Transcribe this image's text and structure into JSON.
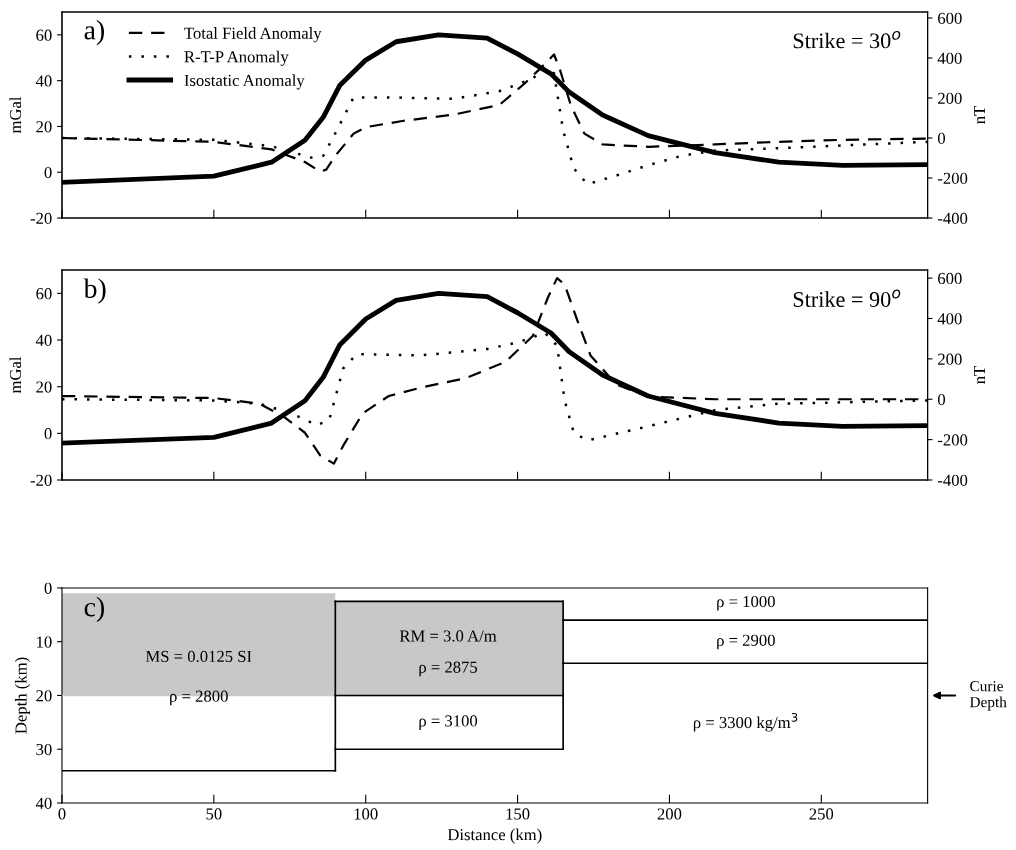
{
  "chart_data": [
    {
      "type": "line",
      "ylabel": "mGal",
      "y2label": "nT",
      "annotations": [
        "a)",
        "Strike = 30$^{o}$"
      ],
      "xlim": [
        0,
        285
      ],
      "xticks": [
        0,
        50,
        100,
        150,
        200,
        250
      ],
      "ylim": [
        -20,
        70
      ],
      "yticks": [
        -20,
        0,
        20,
        40,
        60
      ],
      "y2lim": [
        -400,
        630
      ],
      "y2ticks": [
        -400,
        -200,
        0,
        200,
        400,
        600
      ],
      "tick_labels": "y",
      "legend": "top left",
      "grid": false,
      "series": [
        {
          "name": "Total Field Anomaly",
          "color": "#000000",
          "axis": "y2",
          "line_style": "dashed",
          "x": [
            0,
            50,
            69,
            80,
            85,
            87,
            90,
            96,
            100,
            112,
            129,
            144,
            152.5,
            159,
            162,
            164,
            167.5,
            172,
            178,
            193,
            215,
            236,
            257,
            285
          ],
          "values": [
            0,
            -19,
            -57,
            -120,
            -168,
            -158,
            -89,
            22,
            54,
            85,
            117,
            165,
            275,
            370,
            418,
            339,
            165,
            22,
            -32,
            -44,
            -32,
            -19,
            -9,
            -3
          ]
        },
        {
          "name": "R-T-P Anomaly",
          "color": "#000000",
          "axis": "y2",
          "line_style": "dotted",
          "x": [
            0,
            50,
            69,
            82,
            86,
            90.5,
            96,
            108,
            129,
            144,
            155,
            159,
            162,
            165,
            168.5,
            173,
            182,
            193,
            204,
            215,
            236,
            285
          ],
          "values": [
            0,
            -9,
            -41,
            -98,
            -89,
            38,
            203,
            203,
            196,
            234,
            297,
            354,
            323,
            38,
            -152,
            -231,
            -190,
            -136,
            -89,
            -63,
            -51,
            -19
          ]
        },
        {
          "name": "Isostatic Anomaly",
          "color": "#000000",
          "axis": "y",
          "line_style": "solid",
          "x": [
            0,
            50,
            69,
            80,
            86,
            91.5,
            100,
            110,
            124,
            140,
            150,
            161,
            167,
            178,
            193,
            215,
            236,
            257,
            285
          ],
          "values": [
            -4.4,
            -1.7,
            4.4,
            14,
            24,
            38,
            49,
            57,
            60,
            58.6,
            51.7,
            43,
            35,
            25,
            16,
            8.6,
            4.4,
            3,
            3.3
          ]
        }
      ]
    },
    {
      "type": "line",
      "ylabel": "mGal",
      "y2label": "nT",
      "annotations": [
        "b)",
        "Strike = 90$^{o}$"
      ],
      "xlim": [
        0,
        285
      ],
      "xticks": [
        0,
        50,
        100,
        150,
        200,
        250
      ],
      "ylim": [
        -20,
        70
      ],
      "yticks": [
        -20,
        0,
        20,
        40,
        60
      ],
      "y2lim": [
        -400,
        640
      ],
      "y2ticks": [
        -400,
        -200,
        0,
        200,
        400,
        600
      ],
      "tick_labels": "y",
      "grid": false,
      "series": [
        {
          "color": "#000000",
          "axis": "y2",
          "line_style": "dashed",
          "x": [
            0,
            50,
            65,
            73,
            80,
            85,
            89.5,
            92.6,
            99,
            107.6,
            118,
            133,
            146,
            155,
            160,
            163,
            165.5,
            170,
            174,
            182.5,
            193,
            215,
            285
          ],
          "values": [
            16,
            6,
            -22,
            -86,
            -166,
            -278,
            -319,
            -230,
            -70,
            16,
            57,
            105,
            185,
            313,
            504,
            600,
            568,
            377,
            217,
            73,
            13,
            0,
            0
          ]
        },
        {
          "color": "#000000",
          "axis": "y2",
          "line_style": "dotted",
          "x": [
            0,
            50,
            65,
            75.5,
            84,
            88,
            92.6,
            97,
            118,
            140,
            150,
            159,
            163,
            165.5,
            168.5,
            173,
            193,
            215,
            236,
            285
          ],
          "values": [
            0,
            -6,
            -22,
            -70,
            -128,
            -102,
            153,
            223,
            217,
            249,
            281,
            329,
            265,
            -6,
            -166,
            -204,
            -134,
            -54,
            -22,
            -6
          ]
        },
        {
          "color": "#000000",
          "axis": "y",
          "line_style": "solid",
          "x": [
            0,
            50,
            69,
            80,
            86,
            91.5,
            100,
            110,
            124,
            140,
            150,
            161,
            167,
            178,
            193,
            215,
            236,
            257,
            285
          ],
          "values": [
            -4.2,
            -1.7,
            4.4,
            14,
            24,
            38,
            49,
            57,
            60,
            58.6,
            51.7,
            43,
            35,
            25,
            16,
            8.6,
            4.4,
            3,
            3.3
          ]
        }
      ]
    },
    {
      "type": "line",
      "xlabel": "Distance (km)",
      "ylabel": "Depth (km)",
      "annotations": [
        "c)",
        "MS = 0.0125 SI",
        "ρ = 2800",
        "RM = 3.0 A/m",
        "ρ = 2875",
        "ρ = 3100",
        "ρ = 1000",
        "ρ = 2900",
        "ρ = 3300 kg/m$^{3}$",
        "Curie\nDepth"
      ],
      "xlim": [
        0,
        285
      ],
      "xticks": [
        0,
        50,
        100,
        150,
        200,
        250
      ],
      "ylim": [
        40,
        0
      ],
      "yticks": [
        0,
        10,
        20,
        30,
        40
      ],
      "grid": false,
      "series": [
        {
          "color": "#c8c8c8",
          "x": [
            0,
            90,
            90,
            165
          ],
          "values": [
            20,
            20,
            20,
            20
          ],
          "lower": [
            1,
            1,
            2.5,
            2.5
          ],
          "upper": [
            20,
            20,
            20,
            20
          ]
        },
        {
          "color": "#000000",
          "x": [
            0,
            90
          ],
          "values": [
            34,
            34
          ]
        },
        {
          "color": "#000000",
          "x": [
            90,
            165
          ],
          "values": [
            2.5,
            2.5
          ]
        },
        {
          "color": "#000000",
          "x": [
            90,
            165
          ],
          "values": [
            20,
            20
          ]
        },
        {
          "color": "#000000",
          "x": [
            90,
            165
          ],
          "values": [
            30,
            30
          ]
        },
        {
          "color": "#000000",
          "x": [
            165,
            285
          ],
          "values": [
            6,
            6
          ]
        },
        {
          "color": "#000000",
          "x": [
            165,
            285
          ],
          "values": [
            14,
            14
          ]
        }
      ]
    }
  ]
}
